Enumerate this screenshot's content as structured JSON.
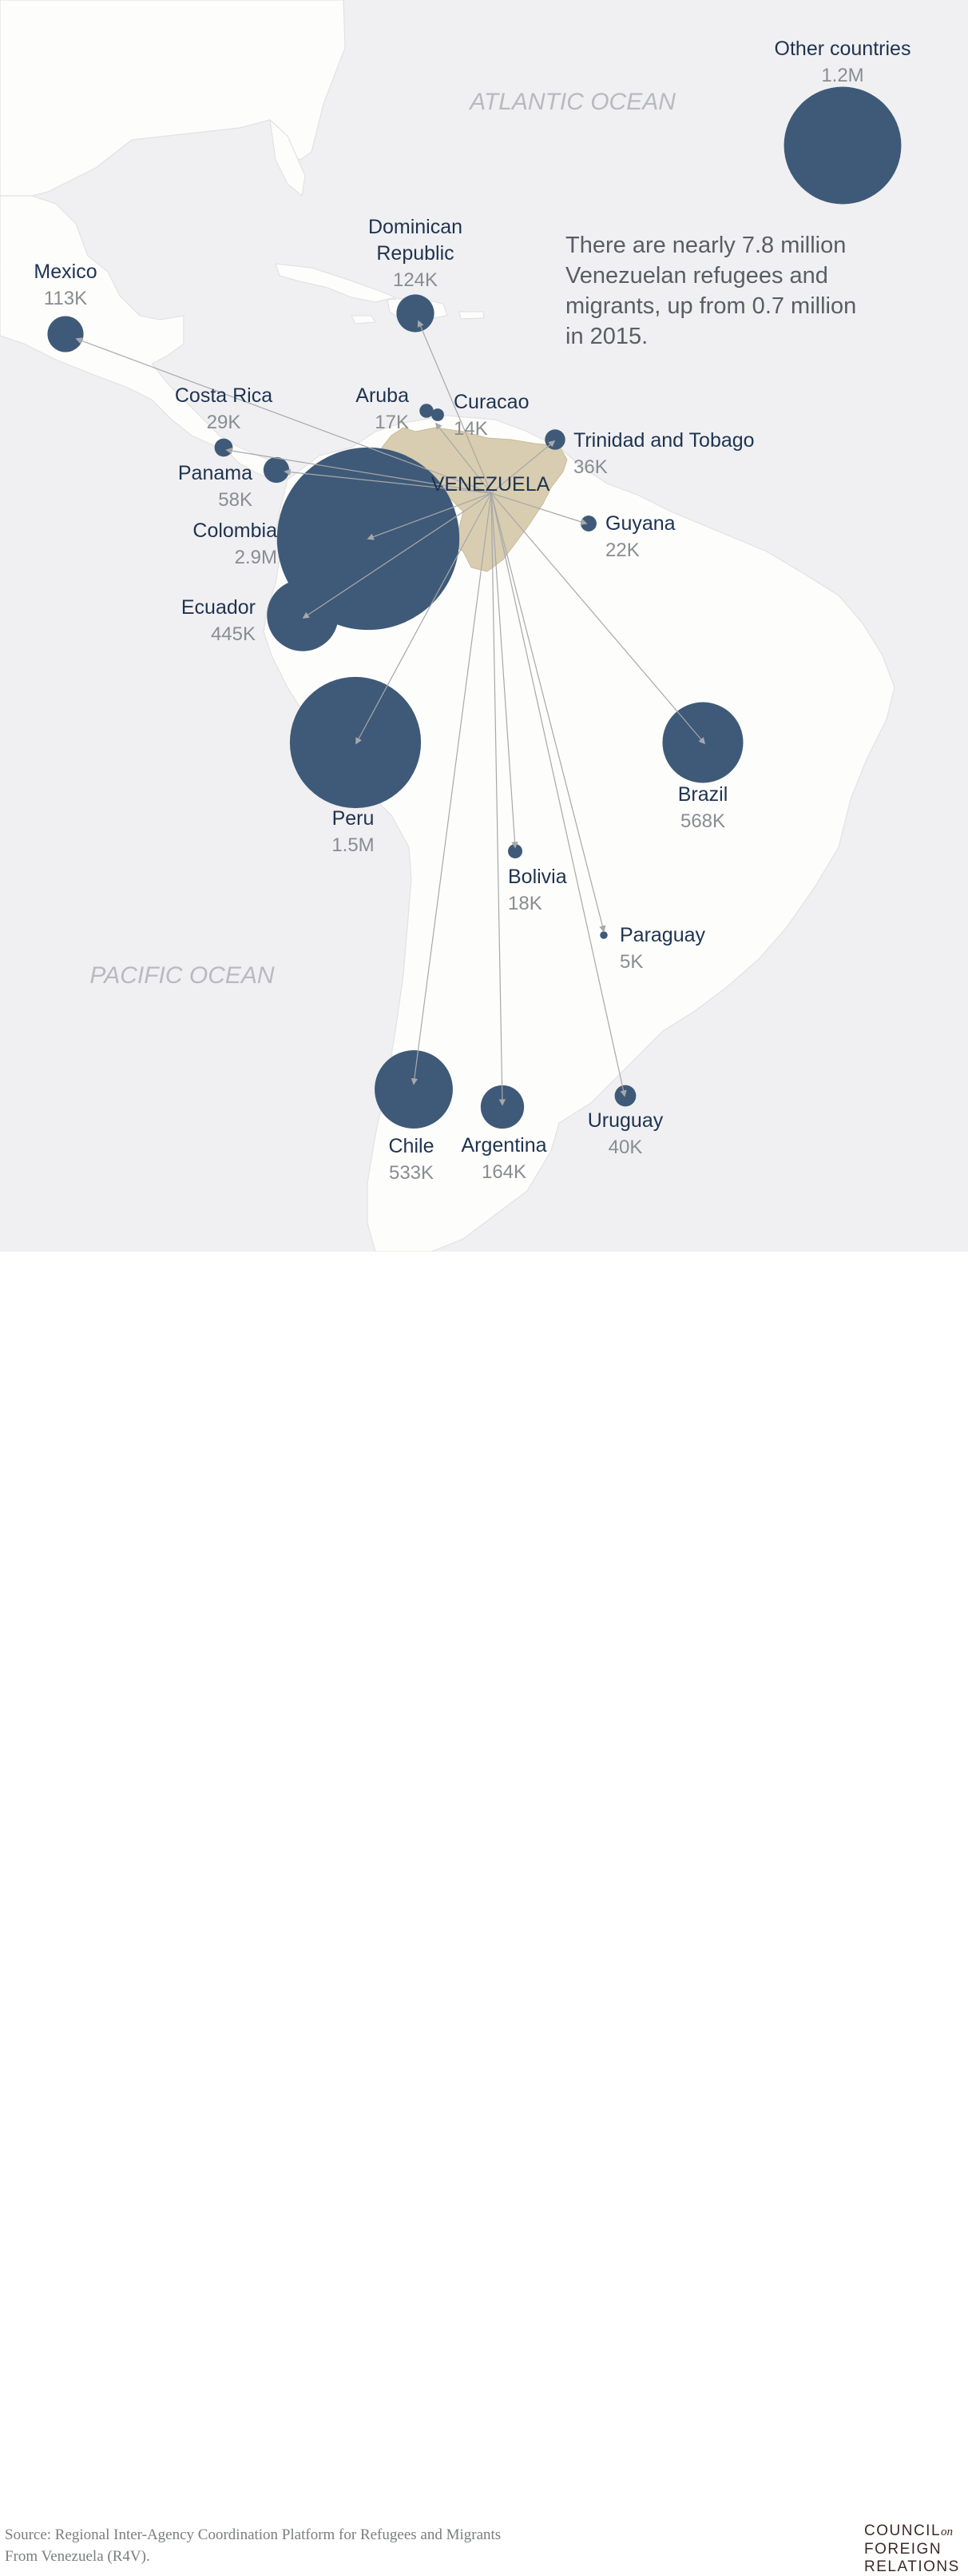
{
  "oceans": {
    "atlantic": "ATLANTIC OCEAN",
    "pacific": "PACIFIC OCEAN"
  },
  "origin": {
    "name": "VENEZUELA",
    "color": "#d8cdb0"
  },
  "headline": [
    "There are nearly 7.8 million",
    "Venezuelan refugees and",
    "migrants, up from 0.7 million",
    "in 2015."
  ],
  "colors": {
    "ocean": "#f0f0f2",
    "land": "#fdfdfc",
    "bubble": "#3f5a78",
    "arrow": "#a8a8aa",
    "name_text": "#1f3350",
    "value_text": "#8a8c90"
  },
  "destinations": [
    {
      "id": "mexico",
      "name_lines": [
        "Mexico"
      ],
      "value_label": "113K",
      "value_thousands": 113
    },
    {
      "id": "dominican-republic",
      "name_lines": [
        "Dominican",
        "Republic"
      ],
      "value_label": "124K",
      "value_thousands": 124
    },
    {
      "id": "costa-rica",
      "name_lines": [
        "Costa Rica"
      ],
      "value_label": "29K",
      "value_thousands": 29
    },
    {
      "id": "aruba",
      "name_lines": [
        "Aruba"
      ],
      "value_label": "17K",
      "value_thousands": 17
    },
    {
      "id": "curacao",
      "name_lines": [
        "Curacao"
      ],
      "value_label": "14K",
      "value_thousands": 14
    },
    {
      "id": "trinidad-and-tobago",
      "name_lines": [
        "Trinidad and Tobago"
      ],
      "value_label": "36K",
      "value_thousands": 36
    },
    {
      "id": "panama",
      "name_lines": [
        "Panama"
      ],
      "value_label": "58K",
      "value_thousands": 58
    },
    {
      "id": "colombia",
      "name_lines": [
        "Colombia"
      ],
      "value_label": "2.9M",
      "value_thousands": 2900
    },
    {
      "id": "guyana",
      "name_lines": [
        "Guyana"
      ],
      "value_label": "22K",
      "value_thousands": 22
    },
    {
      "id": "ecuador",
      "name_lines": [
        "Ecuador"
      ],
      "value_label": "445K",
      "value_thousands": 445
    },
    {
      "id": "peru",
      "name_lines": [
        "Peru"
      ],
      "value_label": "1.5M",
      "value_thousands": 1500
    },
    {
      "id": "brazil",
      "name_lines": [
        "Brazil"
      ],
      "value_label": "568K",
      "value_thousands": 568
    },
    {
      "id": "bolivia",
      "name_lines": [
        "Bolivia"
      ],
      "value_label": "18K",
      "value_thousands": 18
    },
    {
      "id": "paraguay",
      "name_lines": [
        "Paraguay"
      ],
      "value_label": "5K",
      "value_thousands": 5
    },
    {
      "id": "chile",
      "name_lines": [
        "Chile"
      ],
      "value_label": "533K",
      "value_thousands": 533
    },
    {
      "id": "argentina",
      "name_lines": [
        "Argentina"
      ],
      "value_label": "164K",
      "value_thousands": 164
    },
    {
      "id": "uruguay",
      "name_lines": [
        "Uruguay"
      ],
      "value_label": "40K",
      "value_thousands": 40
    },
    {
      "id": "other-countries",
      "name_lines": [
        "Other countries"
      ],
      "value_label": "1.2M",
      "value_thousands": 1200
    }
  ],
  "footer": {
    "source_line1": "Source:  Regional Inter-Agency Coordination Platform for Refugees and Migrants",
    "source_line2": "From Venezuela (R4V).",
    "logo_line1": "COUNCIL",
    "logo_on": "on",
    "logo_line2": "FOREIGN",
    "logo_line3": "RELATIONS"
  }
}
